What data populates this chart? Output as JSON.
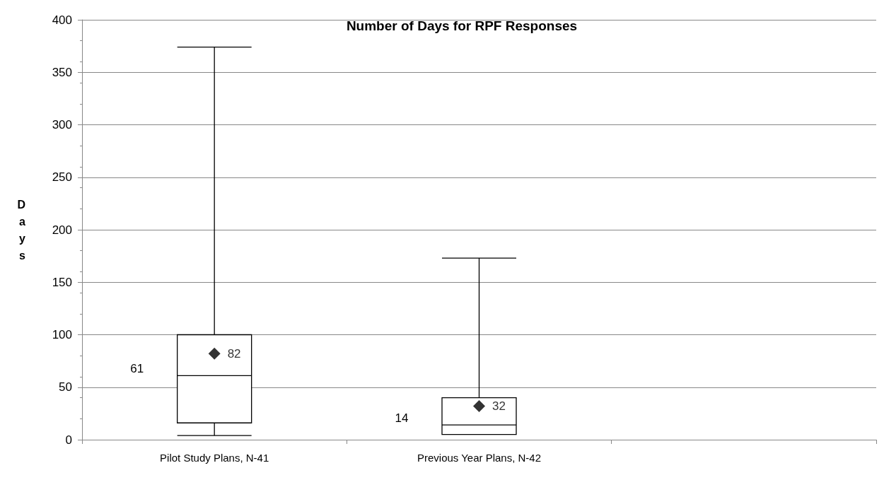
{
  "chart_data": {
    "type": "box",
    "title": "Number of Days for RPF Responses",
    "ylabel": "Days",
    "categories": [
      "Pilot Study Plans, N-41",
      "Previous Year Plans, N-42",
      null
    ],
    "boxes": [
      {
        "low": 4,
        "q1": 16,
        "median": 61,
        "q3": 100,
        "high": 374
      },
      {
        "low": 5,
        "q1": 5,
        "median": 14,
        "q3": 40,
        "high": 173
      },
      null
    ],
    "series": [
      {
        "type": "scatter",
        "x": [
          "Pilot Study Plans, N-41",
          "Previous Year Plans, N-42"
        ],
        "values": [
          82,
          32
        ],
        "color": "#000000",
        "marker": "diamond",
        "data_labels": true
      }
    ],
    "annotations": [
      "61",
      "14"
    ],
    "ylim": [
      0,
      400
    ],
    "yticks": [
      0,
      50,
      100,
      150,
      200,
      250,
      300,
      350,
      400
    ],
    "grid": "y"
  }
}
